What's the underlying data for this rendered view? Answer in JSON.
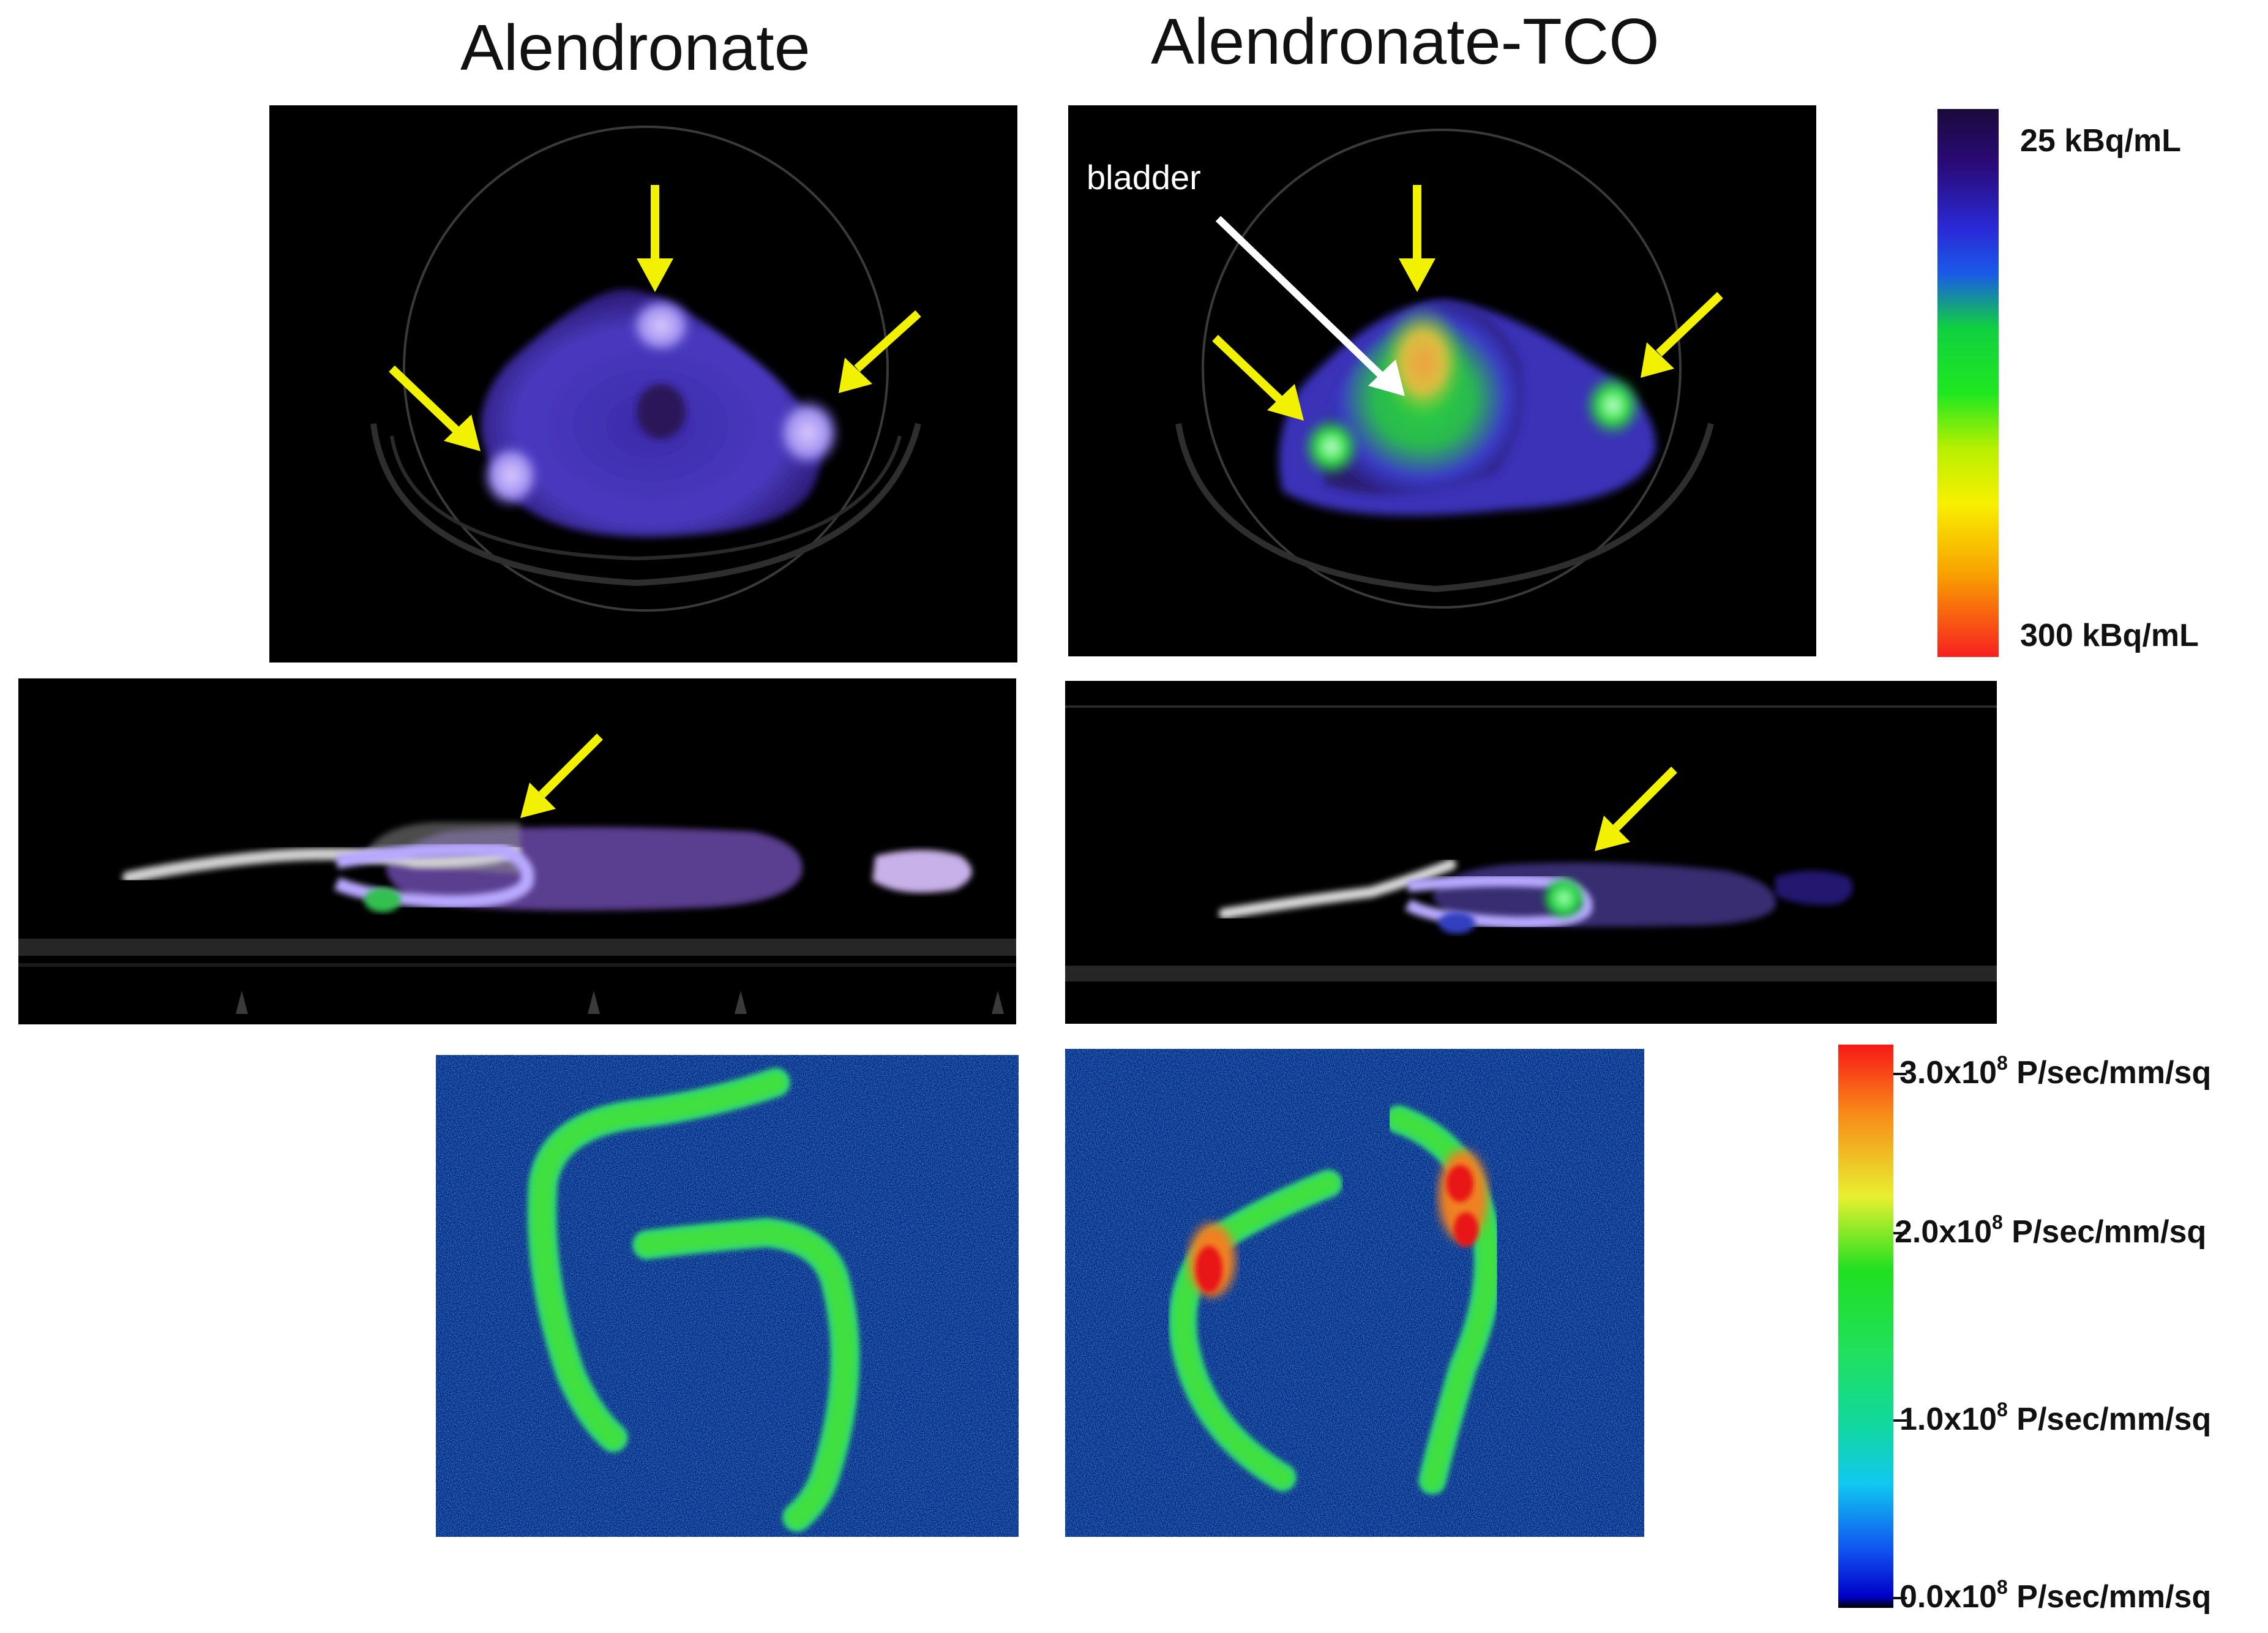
{
  "columns": {
    "left_title": "Alendronate",
    "right_title": "Alendronate-TCO"
  },
  "annotations": {
    "bladder": "bladder"
  },
  "pet_colorbar": {
    "top_label": "25 kBq/mL",
    "bottom_label": "300 kBq/mL",
    "gradient": [
      "#1a0a3a",
      "#2a0a78",
      "#2a2ad8",
      "#1a5ae8",
      "#10d040",
      "#20e820",
      "#d8f000",
      "#f8f000",
      "#f8a000",
      "#f82020"
    ]
  },
  "fluor_colorbar": {
    "labels": [
      {
        "mantissa": "3.0x10",
        "exp": "8",
        "unit": " P/sec/mm/sq",
        "value": 3.0
      },
      {
        "mantissa": "2.0x10",
        "exp": "8",
        "unit": " P/sec/mm/sq",
        "value": 2.0
      },
      {
        "mantissa": "1.0x10",
        "exp": "8",
        "unit": " P/sec/mm/sq",
        "value": 1.0
      },
      {
        "mantissa": "0.0x10",
        "exp": "8",
        "unit": " P/sec/mm/sq",
        "value": 0.0
      }
    ],
    "gradient": [
      "#f81818",
      "#f88818",
      "#e8f030",
      "#20e020",
      "#10d8a0",
      "#10c8f0",
      "#1050f0",
      "#0000c8"
    ]
  },
  "colors": {
    "arrow_yellow": "#f2f200",
    "arrow_white": "#ffffff",
    "pet_bg": "#000000",
    "fluor_bg": "#0a2a9a"
  }
}
